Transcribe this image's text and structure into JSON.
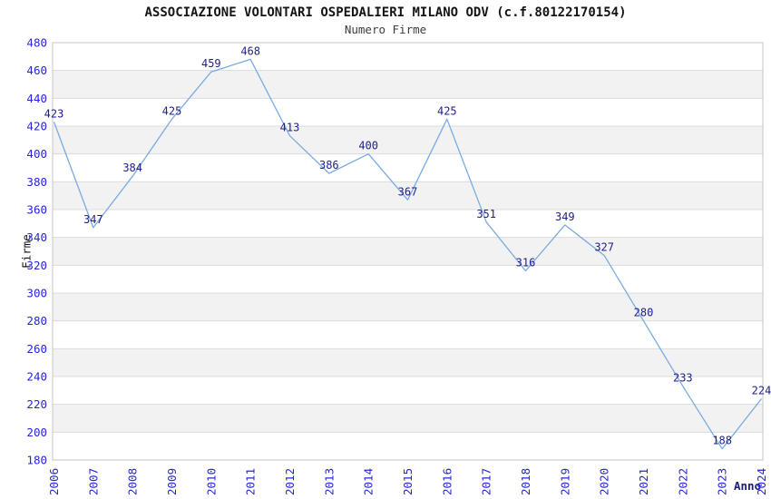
{
  "title": "ASSOCIAZIONE VOLONTARI OSPEDALIERI MILANO ODV (c.f.80122170154)",
  "subtitle": "Numero Firme",
  "chart_data": {
    "type": "line",
    "x": [
      2006,
      2007,
      2008,
      2009,
      2010,
      2011,
      2012,
      2013,
      2014,
      2015,
      2016,
      2017,
      2018,
      2019,
      2020,
      2021,
      2022,
      2023,
      2024
    ],
    "values": [
      423,
      347,
      384,
      425,
      459,
      468,
      413,
      386,
      400,
      367,
      425,
      351,
      316,
      349,
      327,
      280,
      233,
      188,
      224
    ],
    "title": "Numero Firme",
    "xlabel": "Anno",
    "ylabel": "Firme",
    "ylim": [
      180,
      480
    ],
    "ytick_step": 20,
    "grid": "horizontal-bands",
    "legend": "none",
    "colors": {
      "line": "#79abe2",
      "tick_labels": "#2626d8",
      "data_labels": "#1e1e8e",
      "band_fill": "#f2f2f2",
      "gridline": "#dcdcdc",
      "plot_border": "#c6c6c6",
      "title": "#141414",
      "subtitle": "#3d3d3d",
      "xlabel": "#1c1c7a",
      "ylabel": "#141414"
    }
  }
}
